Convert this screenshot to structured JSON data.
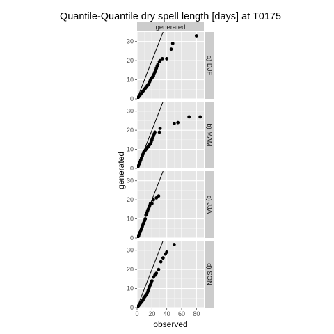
{
  "chart_data": {
    "type": "scatter",
    "title": "Quantile-Quantile dry spell length [days] at T0175",
    "xlabel": "observed",
    "ylabel": "generated",
    "column_strip": "generated",
    "xlim": [
      0,
      90
    ],
    "ylim": [
      0,
      35
    ],
    "x_ticks": [
      0,
      20,
      40,
      60,
      80
    ],
    "y_ticks": [
      0,
      10,
      20,
      30
    ],
    "reference_line": "y = x",
    "grid": true,
    "panels": [
      {
        "label": "a) DJF",
        "points": [
          [
            1,
            0.5
          ],
          [
            2,
            1
          ],
          [
            3,
            1.5
          ],
          [
            4,
            2
          ],
          [
            5,
            2.5
          ],
          [
            6,
            3
          ],
          [
            7,
            3.5
          ],
          [
            8,
            4
          ],
          [
            9,
            4.5
          ],
          [
            10,
            5
          ],
          [
            11,
            5.5
          ],
          [
            12,
            6
          ],
          [
            13,
            6.5
          ],
          [
            14,
            7
          ],
          [
            15,
            7.5
          ],
          [
            16,
            8
          ],
          [
            17,
            9
          ],
          [
            18,
            10
          ],
          [
            19,
            10.5
          ],
          [
            20,
            11
          ],
          [
            21,
            11.5
          ],
          [
            22,
            12
          ],
          [
            23,
            13
          ],
          [
            24,
            14
          ],
          [
            25,
            15
          ],
          [
            26,
            16
          ],
          [
            27,
            17
          ],
          [
            28,
            18
          ],
          [
            30,
            19.5
          ],
          [
            31,
            20
          ],
          [
            34,
            21
          ],
          [
            40,
            21
          ],
          [
            46,
            26
          ],
          [
            48,
            29
          ],
          [
            80,
            33
          ]
        ]
      },
      {
        "label": "b) MAM",
        "points": [
          [
            1,
            0.5
          ],
          [
            2,
            1.5
          ],
          [
            3,
            2.5
          ],
          [
            4,
            3.5
          ],
          [
            5,
            4.5
          ],
          [
            6,
            5.5
          ],
          [
            7,
            6.5
          ],
          [
            8,
            7.5
          ],
          [
            9,
            8.5
          ],
          [
            10,
            9
          ],
          [
            11,
            9.5
          ],
          [
            12,
            10
          ],
          [
            13,
            10.5
          ],
          [
            14,
            11
          ],
          [
            15,
            11.5
          ],
          [
            16,
            12
          ],
          [
            17,
            12.5
          ],
          [
            18,
            13
          ],
          [
            19,
            14
          ],
          [
            20,
            15
          ],
          [
            21,
            16
          ],
          [
            22,
            17
          ],
          [
            23,
            18
          ],
          [
            24,
            19
          ],
          [
            30,
            19
          ],
          [
            31,
            21
          ],
          [
            50,
            23.5
          ],
          [
            55,
            24
          ],
          [
            70,
            27
          ],
          [
            85,
            27
          ]
        ]
      },
      {
        "label": "c) JJA",
        "points": [
          [
            1,
            0.5
          ],
          [
            2,
            1
          ],
          [
            3,
            2
          ],
          [
            4,
            3
          ],
          [
            5,
            4
          ],
          [
            6,
            5
          ],
          [
            7,
            6
          ],
          [
            8,
            7
          ],
          [
            9,
            8
          ],
          [
            10,
            9
          ],
          [
            11,
            10
          ],
          [
            12,
            12
          ],
          [
            13,
            13
          ],
          [
            14,
            14
          ],
          [
            15,
            15
          ],
          [
            16,
            16
          ],
          [
            17,
            17
          ],
          [
            18,
            18
          ],
          [
            19,
            18
          ],
          [
            20,
            18
          ],
          [
            22,
            20
          ],
          [
            26,
            21
          ],
          [
            29,
            22
          ]
        ]
      },
      {
        "label": "d) SON",
        "points": [
          [
            1,
            0.5
          ],
          [
            2,
            1
          ],
          [
            3,
            1.5
          ],
          [
            4,
            2
          ],
          [
            5,
            2.5
          ],
          [
            6,
            3
          ],
          [
            7,
            3.5
          ],
          [
            8,
            4
          ],
          [
            9,
            5
          ],
          [
            10,
            5.5
          ],
          [
            11,
            6
          ],
          [
            12,
            6.5
          ],
          [
            13,
            7
          ],
          [
            14,
            8
          ],
          [
            15,
            9
          ],
          [
            16,
            10
          ],
          [
            17,
            11
          ],
          [
            18,
            12
          ],
          [
            19,
            13
          ],
          [
            20,
            14
          ],
          [
            22,
            16
          ],
          [
            24,
            17
          ],
          [
            26,
            18
          ],
          [
            29,
            20
          ],
          [
            32,
            24
          ],
          [
            35,
            26
          ],
          [
            38,
            28
          ],
          [
            40,
            29
          ],
          [
            50,
            33
          ]
        ]
      }
    ]
  },
  "colors": {
    "panel_bg": "#e5e5e5",
    "grid_major": "#ffffff",
    "grid_minor": "#f2f2f2",
    "strip_bg": "#cccccc",
    "point": "#000000",
    "reference_line": "#000000"
  }
}
